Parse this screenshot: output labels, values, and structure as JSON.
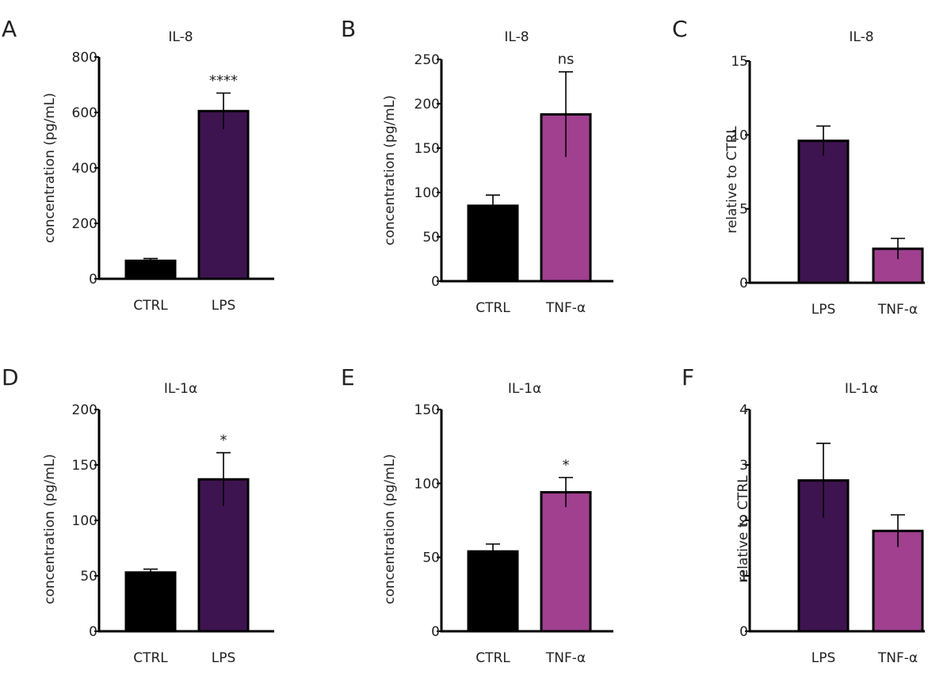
{
  "figure": {
    "chart_data": [
      {
        "panel": "A",
        "type": "bar",
        "title": "IL-8",
        "ylabel": "concentration (pg/mL)",
        "xlabel": "",
        "ylim": [
          0,
          800
        ],
        "yticks": [
          0,
          200,
          400,
          600,
          800
        ],
        "categories": [
          "CTRL",
          "LPS"
        ],
        "values": [
          65,
          605
        ],
        "errors": [
          8,
          65
        ],
        "colors": [
          "#000000",
          "#3e1450"
        ],
        "significance": [
          "",
          "****"
        ]
      },
      {
        "panel": "B",
        "type": "bar",
        "title": "IL-8",
        "ylabel": "concentration (pg/mL)",
        "xlabel": "",
        "ylim": [
          0,
          250
        ],
        "yticks": [
          0,
          50,
          100,
          150,
          200,
          250
        ],
        "categories": [
          "CTRL",
          "TNF-α"
        ],
        "values": [
          85,
          188
        ],
        "errors": [
          12,
          48
        ],
        "colors": [
          "#000000",
          "#a0408f"
        ],
        "significance": [
          "",
          "ns"
        ]
      },
      {
        "panel": "C",
        "type": "bar",
        "title": "IL-8",
        "ylabel": "relative to CTRL",
        "xlabel": "",
        "ylim": [
          0,
          15
        ],
        "yticks": [
          0,
          5,
          10,
          15
        ],
        "categories": [
          "LPS",
          "TNF-α"
        ],
        "values": [
          9.6,
          2.3
        ],
        "errors": [
          1.0,
          0.7
        ],
        "colors": [
          "#3e1450",
          "#a0408f"
        ],
        "significance": [
          "",
          ""
        ]
      },
      {
        "panel": "D",
        "type": "bar",
        "title": "IL-1α",
        "ylabel": "concentration (pg/mL)",
        "xlabel": "",
        "ylim": [
          0,
          200
        ],
        "yticks": [
          0,
          50,
          100,
          150,
          200
        ],
        "categories": [
          "CTRL",
          "LPS"
        ],
        "values": [
          53,
          137
        ],
        "errors": [
          3,
          24
        ],
        "colors": [
          "#000000",
          "#3e1450"
        ],
        "significance": [
          "",
          "*"
        ]
      },
      {
        "panel": "E",
        "type": "bar",
        "title": "IL-1α",
        "ylabel": "concentration (pg/mL)",
        "xlabel": "",
        "ylim": [
          0,
          150
        ],
        "yticks": [
          0,
          50,
          100,
          150
        ],
        "categories": [
          "CTRL",
          "TNF-α"
        ],
        "values": [
          54,
          94
        ],
        "errors": [
          5,
          10
        ],
        "colors": [
          "#000000",
          "#a0408f"
        ],
        "significance": [
          "",
          "*"
        ]
      },
      {
        "panel": "F",
        "type": "bar",
        "title": "IL-1α",
        "ylabel": "relative to CTRL",
        "xlabel": "",
        "ylim": [
          0,
          4
        ],
        "yticks": [
          0,
          1,
          2,
          3,
          4
        ],
        "categories": [
          "LPS",
          "TNF-α"
        ],
        "values": [
          2.72,
          1.81
        ],
        "errors": [
          0.67,
          0.29
        ],
        "colors": [
          "#3e1450",
          "#a0408f"
        ],
        "significance": [
          "",
          ""
        ]
      }
    ]
  }
}
